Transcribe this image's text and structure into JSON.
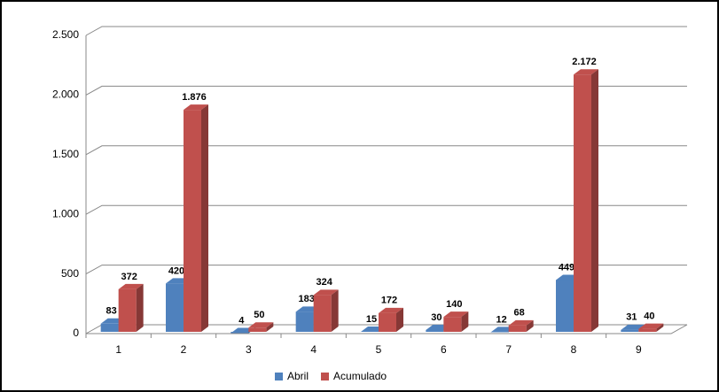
{
  "chart_data": {
    "type": "bar",
    "categories": [
      "1",
      "2",
      "3",
      "4",
      "5",
      "6",
      "7",
      "8",
      "9"
    ],
    "series": [
      {
        "name": "Abril",
        "color": "#4f81bd",
        "values": [
          83,
          420,
          4,
          183,
          15,
          30,
          12,
          449,
          31
        ]
      },
      {
        "name": "Acumulado",
        "color": "#c0504d",
        "values": [
          372,
          1876,
          50,
          324,
          172,
          140,
          68,
          2172,
          40
        ],
        "value_labels": [
          "372",
          "1.876",
          "50",
          "324",
          "172",
          "140",
          "68",
          "2.172",
          "40"
        ]
      }
    ],
    "ylim": [
      0,
      2500
    ],
    "yticks": [
      0,
      500,
      {
        "value": 1000,
        "label": "1.000"
      },
      {
        "value": 1500,
        "label": "1.500"
      },
      {
        "value": 2000,
        "label": "2.000"
      },
      {
        "value": 2500,
        "label": "2.500"
      }
    ],
    "grid": true,
    "legend": "bottom"
  }
}
